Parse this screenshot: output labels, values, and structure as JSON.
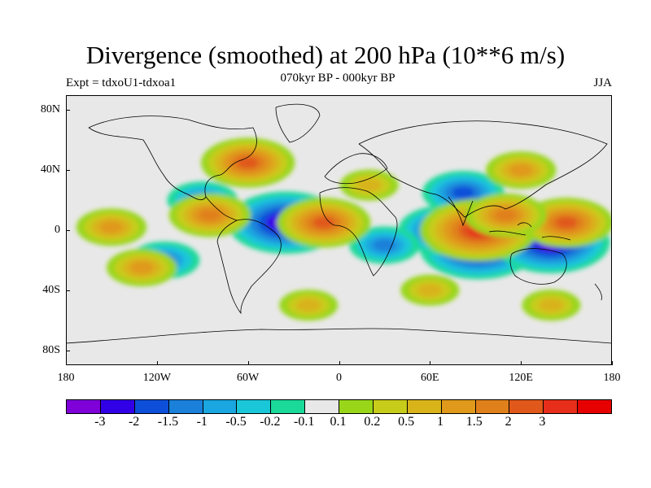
{
  "header": {
    "title": "Divergence (smoothed) at 200 hPa (10**6 m/s)",
    "subtitle": "070kyr BP - 000kyr BP",
    "experiment": "Expt = tdxoU1-tdxoa1",
    "season": "JJA"
  },
  "map": {
    "lat_ticks": [
      {
        "value": 80,
        "label": "80N"
      },
      {
        "value": 40,
        "label": "40N"
      },
      {
        "value": 0,
        "label": "0"
      },
      {
        "value": -40,
        "label": "40S"
      },
      {
        "value": -80,
        "label": "80S"
      }
    ],
    "lon_ticks": [
      {
        "value": -180,
        "label": "180"
      },
      {
        "value": -120,
        "label": "120W"
      },
      {
        "value": -60,
        "label": "60W"
      },
      {
        "value": 0,
        "label": "0"
      },
      {
        "value": 60,
        "label": "60E"
      },
      {
        "value": 120,
        "label": "120E"
      },
      {
        "value": 180,
        "label": "180"
      }
    ],
    "extent": {
      "lon_min": -180,
      "lon_max": 180,
      "lat_min": -90,
      "lat_max": 90
    },
    "anomaly_centers": [
      {
        "lon": -35,
        "lat": 5,
        "level": -3
      },
      {
        "lon": 92,
        "lat": -12,
        "level": -3
      },
      {
        "lon": 140,
        "lat": -8,
        "level": -3
      },
      {
        "lon": 70,
        "lat": 0,
        "level": -2
      },
      {
        "lon": 82,
        "lat": 25,
        "level": -1.5
      },
      {
        "lon": -115,
        "lat": -20,
        "level": -1
      },
      {
        "lon": -90,
        "lat": 20,
        "level": -1
      },
      {
        "lon": 30,
        "lat": -10,
        "level": -1
      },
      {
        "lon": -10,
        "lat": 5,
        "level": 2
      },
      {
        "lon": 92,
        "lat": 0,
        "level": 3
      },
      {
        "lon": 150,
        "lat": 5,
        "level": 2
      },
      {
        "lon": -85,
        "lat": 10,
        "level": 1.5
      },
      {
        "lon": -60,
        "lat": 45,
        "level": 2
      },
      {
        "lon": -130,
        "lat": -25,
        "level": 1
      },
      {
        "lon": -150,
        "lat": 2,
        "level": 1
      },
      {
        "lon": 110,
        "lat": 10,
        "level": 1.5
      },
      {
        "lon": 20,
        "lat": 30,
        "level": 0.5
      },
      {
        "lon": 120,
        "lat": 40,
        "level": 1
      },
      {
        "lon": -20,
        "lat": -50,
        "level": 0.5
      },
      {
        "lon": 60,
        "lat": -40,
        "level": 0.5
      },
      {
        "lon": 140,
        "lat": -50,
        "level": 0.5
      }
    ]
  },
  "colorbar": {
    "colors": [
      "#7f00d9",
      "#3200e6",
      "#0d4fd9",
      "#1a80d9",
      "#1aa6e0",
      "#1ac7d9",
      "#1ad999",
      "#e8e8e8",
      "#99d61a",
      "#c7cc1a",
      "#d9b31a",
      "#e0991a",
      "#e0801a",
      "#e0591a",
      "#e62e1a",
      "#e60000"
    ],
    "labels": [
      "-3",
      "-2",
      "-1.5",
      "-1",
      "-0.5",
      "-0.2",
      "-0.1",
      "0.1",
      "0.2",
      "0.5",
      "1",
      "1.5",
      "2",
      "3"
    ],
    "levels": [
      -3,
      -2,
      -1.5,
      -1,
      -0.5,
      -0.2,
      -0.1,
      0.1,
      0.2,
      0.5,
      1,
      1.5,
      2,
      3
    ]
  }
}
